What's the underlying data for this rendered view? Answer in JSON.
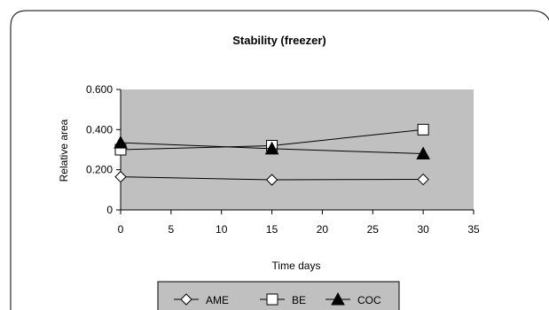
{
  "chart_data": {
    "type": "line",
    "title": "Stability (freezer)",
    "xlabel": "Time days",
    "ylabel": "Relative area",
    "xlim": [
      0,
      35
    ],
    "ylim": [
      0,
      0.6
    ],
    "xticks": [
      "0",
      "5",
      "10",
      "15",
      "20",
      "25",
      "30",
      "35"
    ],
    "yticks": [
      "0",
      "0.200",
      "0.400",
      "0.600"
    ],
    "grid": false,
    "plot_background": "#c0c0c0",
    "legend_position": "bottom",
    "x": [
      0,
      15,
      30
    ],
    "series": [
      {
        "name": "AME",
        "marker": "diamond-open",
        "values": [
          0.165,
          0.15,
          0.152
        ]
      },
      {
        "name": "BE",
        "marker": "square-open",
        "values": [
          0.3,
          0.32,
          0.4
        ]
      },
      {
        "name": "COC",
        "marker": "triangle-filled",
        "values": [
          0.335,
          0.305,
          0.28
        ]
      }
    ]
  }
}
